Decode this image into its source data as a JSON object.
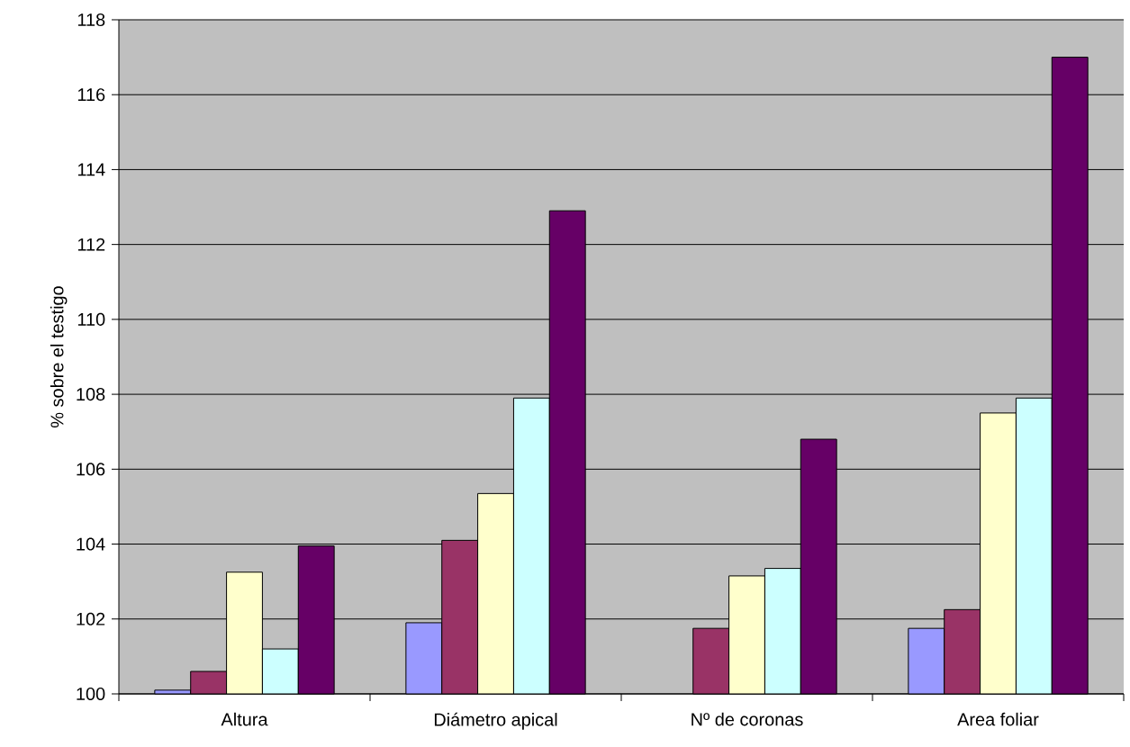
{
  "chart_data": {
    "type": "bar",
    "ylabel": "% sobre el testigo",
    "categories": [
      "Altura",
      "Diámetro apical",
      "Nº de coronas",
      "Area foliar"
    ],
    "series": [
      {
        "color": "#9999ff",
        "values": [
          100.1,
          101.9,
          null,
          101.75
        ]
      },
      {
        "color": "#993366",
        "values": [
          100.6,
          104.1,
          101.75,
          102.25
        ]
      },
      {
        "color": "#ffffcc",
        "values": [
          103.25,
          105.35,
          103.15,
          107.5
        ]
      },
      {
        "color": "#ccffff",
        "values": [
          101.2,
          107.9,
          103.35,
          107.9
        ]
      },
      {
        "color": "#660066",
        "values": [
          103.95,
          112.9,
          106.8,
          117.0
        ]
      }
    ],
    "ylim": [
      100,
      118
    ],
    "yticks": [
      100,
      102,
      104,
      106,
      108,
      110,
      112,
      114,
      116,
      118
    ],
    "grid": "y"
  }
}
